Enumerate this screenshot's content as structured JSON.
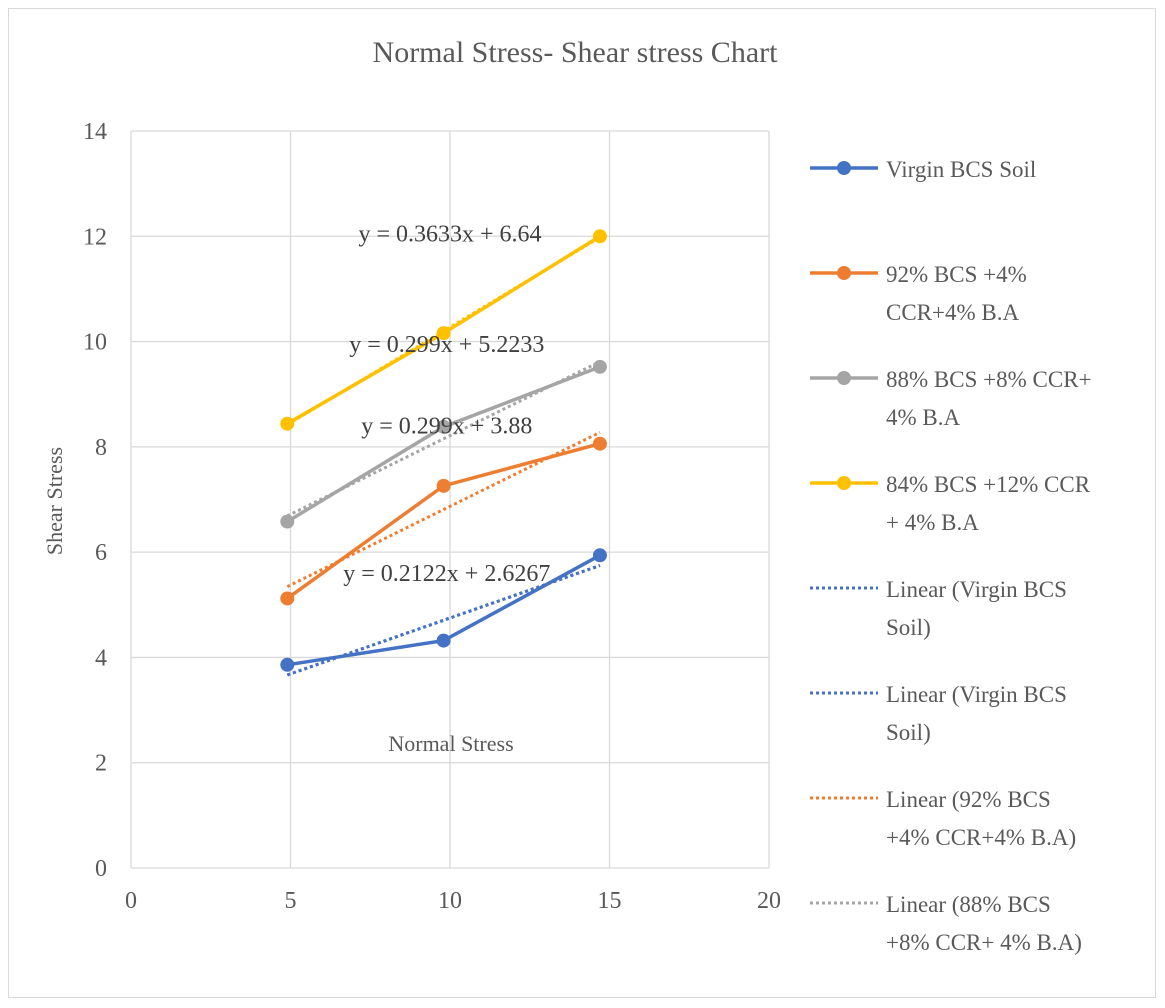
{
  "chart_data": {
    "type": "line",
    "title": "Normal Stress- Shear stress Chart",
    "xlabel": "Normal Stress",
    "ylabel": "Shear Stress",
    "xlim": [
      0,
      20
    ],
    "ylim": [
      0,
      14
    ],
    "x_ticks": [
      "0",
      "5",
      "10",
      "15",
      "20"
    ],
    "y_ticks": [
      "0",
      "2",
      "4",
      "6",
      "8",
      "10",
      "12",
      "14"
    ],
    "grid": true,
    "legend_position": "right",
    "series": [
      {
        "name": "Virgin BCS Soil",
        "color": "#4472C4",
        "style": "solid-marker",
        "x": [
          4.9,
          9.8,
          14.7
        ],
        "y": [
          3.86,
          4.32,
          5.94
        ]
      },
      {
        "name": "92% BCS +4% CCR+4% B.A",
        "color": "#ED7D31",
        "style": "solid-marker",
        "x": [
          4.9,
          9.8,
          14.7
        ],
        "y": [
          5.12,
          7.26,
          8.06
        ]
      },
      {
        "name": "88% BCS +8% CCR+ 4% B.A",
        "color": "#A5A5A5",
        "style": "solid-marker",
        "x": [
          4.9,
          9.8,
          14.7
        ],
        "y": [
          6.58,
          8.38,
          9.52
        ]
      },
      {
        "name": "84% BCS +12% CCR + 4% B.A",
        "color": "#FFC000",
        "style": "solid-marker",
        "x": [
          4.9,
          9.8,
          14.7
        ],
        "y": [
          8.44,
          10.16,
          12.0
        ]
      }
    ],
    "trendlines": [
      {
        "name": "Linear (Virgin BCS Soil)",
        "color": "#4472C4",
        "slope": 0.2122,
        "intercept": 2.6267,
        "x_range": [
          4.9,
          14.7
        ]
      },
      {
        "name": "Linear (Virgin BCS Soil)",
        "color": "#4472C4",
        "slope": 0.2122,
        "intercept": 2.6267,
        "x_range": [
          4.9,
          14.7
        ]
      },
      {
        "name": "Linear (92% BCS +4% CCR+4% B.A)",
        "color": "#ED7D31",
        "slope": 0.299,
        "intercept": 3.88,
        "x_range": [
          4.9,
          14.7
        ]
      },
      {
        "name": "Linear (88% BCS +8% CCR+ 4% B.A)",
        "color": "#A5A5A5",
        "slope": 0.299,
        "intercept": 5.2233,
        "x_range": [
          4.9,
          14.7
        ]
      },
      {
        "name": "",
        "color": "#FFC000",
        "slope": 0.3633,
        "intercept": 6.64,
        "x_range": [
          4.9,
          14.7
        ]
      }
    ],
    "annotations": [
      {
        "text": "y = 0.3633x + 6.64",
        "x": 10,
        "y": 11.9
      },
      {
        "text": "y = 0.299x + 5.2233",
        "x": 9.9,
        "y": 9.8
      },
      {
        "text": "y = 0.299x + 3.88",
        "x": 9.9,
        "y": 8.25
      },
      {
        "text": "y = 0.2122x + 2.6267",
        "x": 9.9,
        "y": 5.45
      }
    ],
    "legend": [
      {
        "lines": [
          "Virgin BCS Soil"
        ],
        "color": "#4472C4",
        "style": "solid-marker"
      },
      {
        "lines": [
          "92% BCS +4%",
          "CCR+4% B.A"
        ],
        "color": "#ED7D31",
        "style": "solid-marker"
      },
      {
        "lines": [
          "88% BCS +8% CCR+",
          "4% B.A"
        ],
        "color": "#A5A5A5",
        "style": "solid-marker"
      },
      {
        "lines": [
          "84% BCS +12% CCR",
          "+ 4% B.A"
        ],
        "color": "#FFC000",
        "style": "solid-marker"
      },
      {
        "lines": [
          "Linear (Virgin BCS",
          "Soil)"
        ],
        "color": "#4472C4",
        "style": "dotted"
      },
      {
        "lines": [
          "Linear (Virgin BCS",
          "Soil)"
        ],
        "color": "#4472C4",
        "style": "dotted"
      },
      {
        "lines": [
          "Linear (92% BCS",
          "+4% CCR+4% B.A)"
        ],
        "color": "#ED7D31",
        "style": "dotted"
      },
      {
        "lines": [
          "Linear (88% BCS",
          "+8% CCR+ 4% B.A)"
        ],
        "color": "#A5A5A5",
        "style": "dotted"
      }
    ]
  }
}
